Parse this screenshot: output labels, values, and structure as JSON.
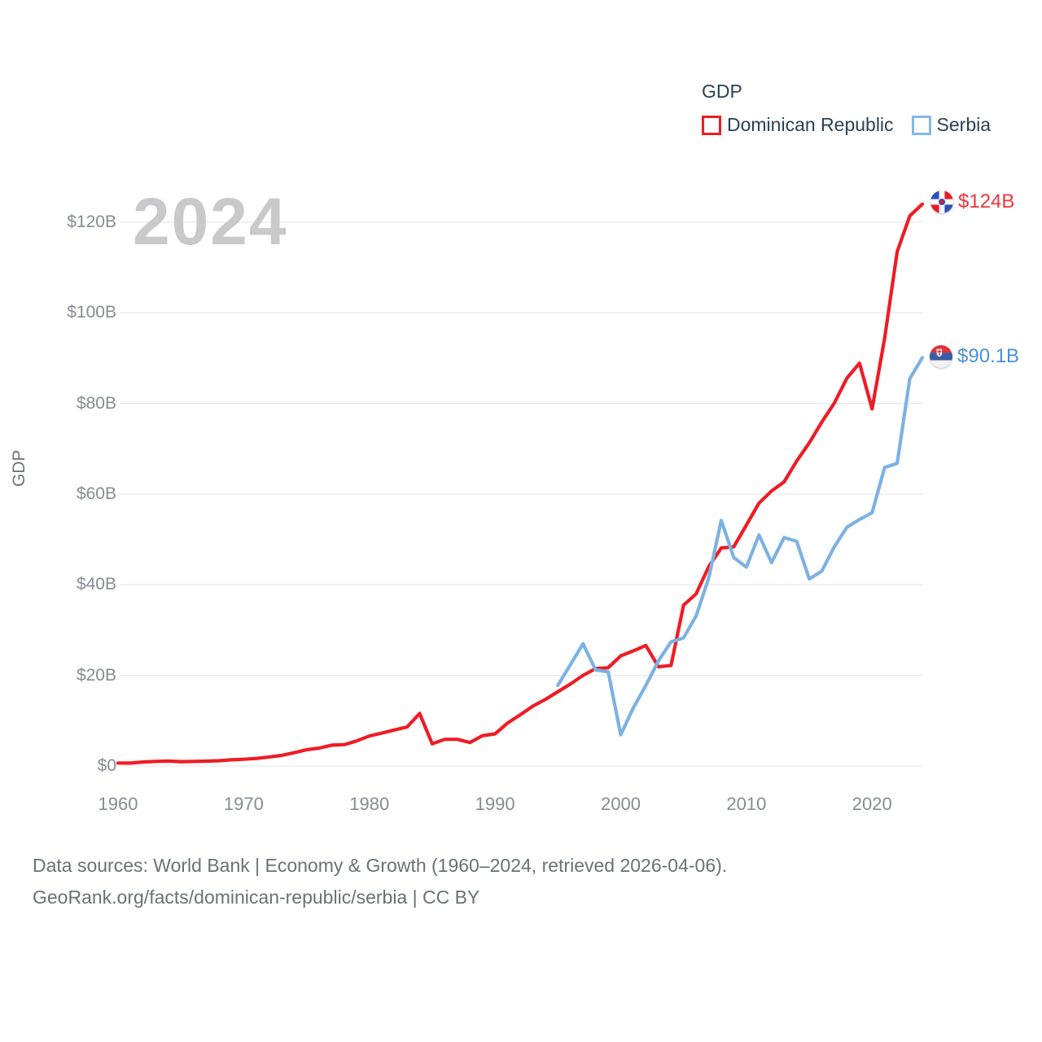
{
  "watermark": "2024",
  "legend": {
    "title": "GDP",
    "items": [
      {
        "label": "Dominican Republic",
        "color": "#ee1c25"
      },
      {
        "label": "Serbia",
        "color": "#85b7e8"
      }
    ]
  },
  "y_axis": {
    "title": "GDP",
    "ticks": [
      "$0",
      "$20B",
      "$40B",
      "$60B",
      "$80B",
      "$100B",
      "$120B"
    ],
    "tick_values": [
      0,
      20,
      40,
      60,
      80,
      100,
      120
    ]
  },
  "x_axis": {
    "ticks": [
      "1960",
      "1970",
      "1980",
      "1990",
      "2000",
      "2010",
      "2020"
    ],
    "tick_values": [
      1960,
      1970,
      1980,
      1990,
      2000,
      2010,
      2020
    ]
  },
  "end_labels": [
    {
      "series": "Dominican Republic",
      "label": "$124B",
      "color": "#f2333a",
      "flag": "dominican-republic-flag"
    },
    {
      "series": "Serbia",
      "label": "$90.1B",
      "color": "#4a90d9",
      "flag": "serbia-flag"
    }
  ],
  "footer": {
    "line1": "Data sources: World Bank | Economy & Growth (1960–2024, retrieved 2026-04-06).",
    "line2": "GeoRank.org/facts/dominican-republic/serbia | CC BY"
  },
  "chart_data": {
    "type": "line",
    "title": "GDP",
    "ylabel": "GDP",
    "xlim": [
      1960,
      2024
    ],
    "ylim": [
      0,
      130
    ],
    "grid": "horizontal",
    "legend_position": "top-right",
    "gridline_color": "#e9eaed",
    "series": [
      {
        "name": "Dominican Republic",
        "color": "#ee1c25",
        "x": [
          1960,
          1961,
          1962,
          1963,
          1964,
          1965,
          1966,
          1967,
          1968,
          1969,
          1970,
          1971,
          1972,
          1973,
          1974,
          1975,
          1976,
          1977,
          1978,
          1979,
          1980,
          1981,
          1982,
          1983,
          1984,
          1985,
          1986,
          1987,
          1988,
          1989,
          1990,
          1991,
          1992,
          1993,
          1994,
          1995,
          1996,
          1997,
          1998,
          1999,
          2000,
          2001,
          2002,
          2003,
          2004,
          2005,
          2006,
          2007,
          2008,
          2009,
          2010,
          2011,
          2012,
          2013,
          2014,
          2015,
          2016,
          2017,
          2018,
          2019,
          2020,
          2021,
          2022,
          2023,
          2024
        ],
        "values": [
          0.67,
          0.64,
          0.9,
          1.02,
          1.1,
          0.97,
          1.0,
          1.08,
          1.17,
          1.36,
          1.49,
          1.67,
          1.99,
          2.34,
          2.93,
          3.6,
          3.95,
          4.59,
          4.73,
          5.55,
          6.63,
          7.27,
          7.96,
          8.62,
          11.6,
          4.9,
          5.9,
          5.9,
          5.2,
          6.7,
          7.1,
          9.5,
          11.3,
          13.2,
          14.7,
          16.4,
          18.1,
          20.0,
          21.5,
          21.7,
          24.3,
          25.4,
          26.6,
          21.9,
          22.2,
          35.5,
          38.0,
          44.0,
          48.1,
          48.4,
          53.2,
          58.0,
          60.7,
          62.7,
          67.3,
          71.3,
          75.9,
          80.1,
          85.6,
          88.9,
          78.8,
          94.4,
          113.5,
          121.4,
          124.0
        ],
        "end_label": "$124B"
      },
      {
        "name": "Serbia",
        "color": "#7db1e3",
        "x": [
          1995,
          1996,
          1997,
          1998,
          1999,
          2000,
          2001,
          2002,
          2003,
          2004,
          2005,
          2006,
          2007,
          2008,
          2009,
          2010,
          2011,
          2012,
          2013,
          2014,
          2015,
          2016,
          2017,
          2018,
          2019,
          2020,
          2021,
          2022,
          2023,
          2024
        ],
        "values": [
          17.8,
          22.4,
          27.0,
          21.2,
          20.8,
          6.9,
          12.8,
          17.8,
          23.2,
          27.4,
          28.3,
          33.1,
          41.5,
          54.2,
          46.0,
          43.9,
          51.0,
          44.9,
          50.4,
          49.6,
          41.3,
          43.0,
          48.4,
          52.7,
          54.4,
          55.9,
          65.9,
          66.8,
          85.5,
          90.1
        ],
        "end_label": "$90.1B"
      }
    ]
  }
}
